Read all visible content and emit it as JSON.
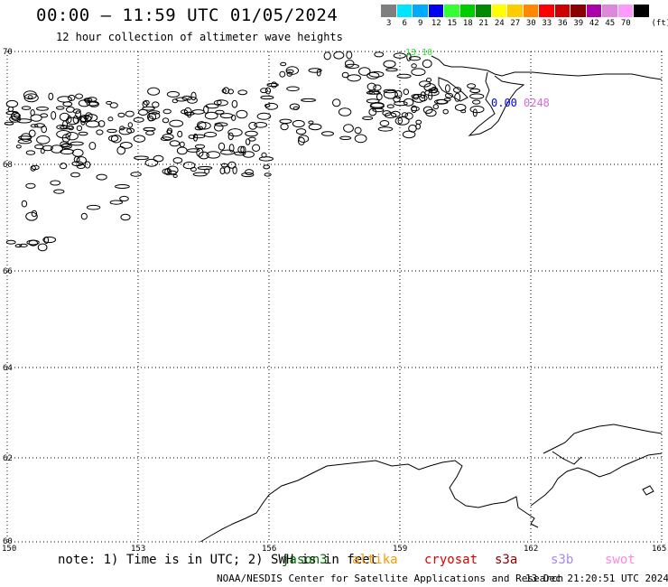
{
  "header": {
    "title": "00:00 – 11:59 UTC 01/05/2024",
    "subtitle": "12 hour collection of altimeter wave heights"
  },
  "legend": {
    "unit": "(ft)",
    "bins": [
      {
        "label": "3",
        "color": "#7f7f7f"
      },
      {
        "label": "6",
        "color": "#00e5ff"
      },
      {
        "label": "9",
        "color": "#00aaff"
      },
      {
        "label": "12",
        "color": "#0000ee"
      },
      {
        "label": "15",
        "color": "#33ff33"
      },
      {
        "label": "18",
        "color": "#00cc00"
      },
      {
        "label": "21",
        "color": "#008800"
      },
      {
        "label": "24",
        "color": "#ffff00"
      },
      {
        "label": "27",
        "color": "#ffcc00"
      },
      {
        "label": "30",
        "color": "#ff8800"
      },
      {
        "label": "33",
        "color": "#ff0000"
      },
      {
        "label": "36",
        "color": "#cc0000"
      },
      {
        "label": "39",
        "color": "#880000"
      },
      {
        "label": "42",
        "color": "#aa00aa"
      },
      {
        "label": "45",
        "color": "#dd88dd"
      },
      {
        "label": "70",
        "color": "#ff99ff"
      },
      {
        "label": "",
        "color": "#000000"
      }
    ]
  },
  "map": {
    "lat_labels": [
      "70",
      "68",
      "66",
      "64",
      "62",
      "60"
    ],
    "lon_labels": [
      "150",
      "153",
      "156",
      "159",
      "162",
      "165"
    ],
    "annotations": [
      {
        "text": "13.10",
        "color": "#33dd33"
      },
      {
        "text": "0.00",
        "color": "#0000ee"
      },
      {
        "text": "0248",
        "color": "#dd66dd"
      }
    ]
  },
  "footer": {
    "note": "note: 1) Time is in UTC; 2) SWH is in feet",
    "satellites": [
      {
        "name": "jason3",
        "color": "#006600"
      },
      {
        "name": "altika",
        "color": "#ff9900"
      },
      {
        "name": "cryosat",
        "color": "#dd0000"
      },
      {
        "name": "s3a",
        "color": "#880000"
      },
      {
        "name": "s3b",
        "color": "#aa88ee"
      },
      {
        "name": "swot",
        "color": "#ff88dd"
      }
    ],
    "credit": "NOAA/NESDIS Center for Satellite Applications and Research",
    "timestamp": "13 Dec 21:20:51 UTC 2024"
  }
}
